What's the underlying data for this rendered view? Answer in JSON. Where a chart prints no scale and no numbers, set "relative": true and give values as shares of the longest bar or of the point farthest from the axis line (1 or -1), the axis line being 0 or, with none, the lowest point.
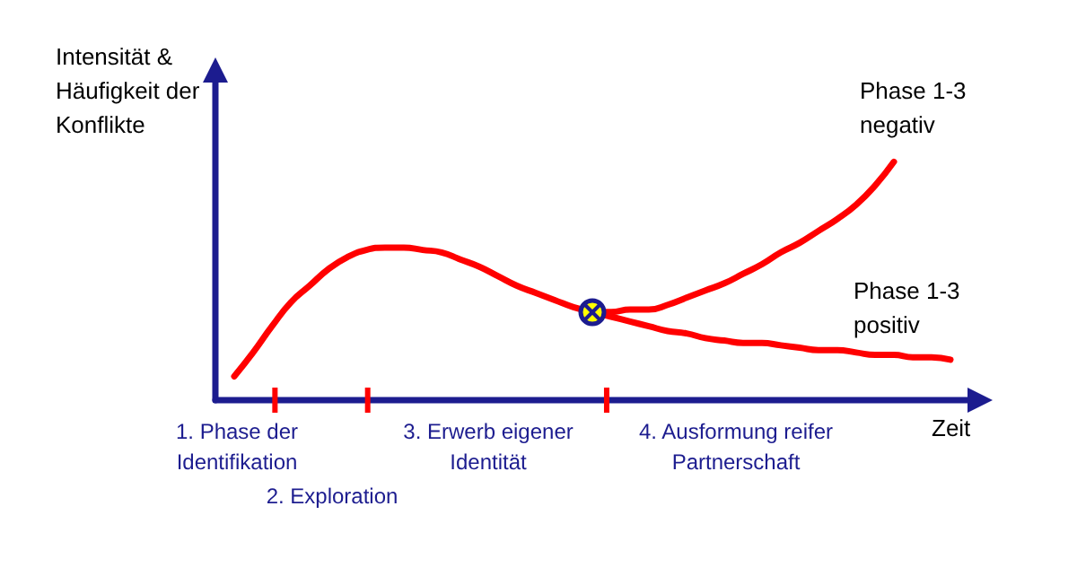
{
  "chart_data": {
    "type": "line",
    "relative": true,
    "ylabel": "Intensität &\nHäufigkeit der\nKonflikte",
    "xlabel": "Zeit",
    "categories": [
      null,
      null,
      null,
      null,
      null,
      null,
      null,
      null,
      null,
      null,
      null,
      null,
      null,
      null,
      null,
      null,
      null,
      null,
      null,
      null,
      null,
      null,
      null,
      null,
      null,
      null,
      null,
      null,
      null,
      null,
      null,
      null,
      null,
      null,
      null,
      null,
      null,
      null,
      null,
      null,
      null
    ],
    "annotations": [
      "1. Phase der\nIdentifikation",
      "2. Exploration",
      "3. Erwerb eigener\nIdentität",
      "4. Ausformung reifer\nPartnerschaft"
    ],
    "grid": false,
    "legend": false,
    "marker": "none",
    "line_style": "solid",
    "series": [
      {
        "color": "#ff0000",
        "values": [
          null,
          0.1,
          0.2,
          0.31,
          0.41,
          0.48,
          0.55,
          0.6,
          0.63,
          0.64,
          0.64,
          0.63,
          0.62,
          0.59,
          0.56,
          0.52,
          0.48,
          0.45,
          0.42,
          0.39,
          0.37,
          null,
          null,
          null,
          null,
          null,
          null,
          null,
          null,
          null,
          null,
          null,
          null,
          null,
          null,
          null,
          null,
          null,
          null,
          null,
          null
        ]
      },
      {
        "name": "Phase 1-3\nnegativ",
        "color": "#ff0000",
        "values": [
          null,
          null,
          null,
          null,
          null,
          null,
          null,
          null,
          null,
          null,
          null,
          null,
          null,
          null,
          null,
          null,
          null,
          null,
          null,
          null,
          0.37,
          0.37,
          0.38,
          0.38,
          0.4,
          0.43,
          0.46,
          0.49,
          0.53,
          0.57,
          0.62,
          0.66,
          0.71,
          0.76,
          0.82,
          0.9,
          1,
          null,
          null,
          null,
          null
        ]
      },
      {
        "name": "Phase 1-3\npositiv",
        "color": "#ff0000",
        "values": [
          null,
          null,
          null,
          null,
          null,
          null,
          null,
          null,
          null,
          null,
          null,
          null,
          null,
          null,
          null,
          null,
          null,
          null,
          null,
          null,
          0.37,
          0.35,
          0.33,
          0.31,
          0.29,
          0.28,
          0.26,
          0.25,
          0.24,
          0.24,
          0.23,
          0.22,
          0.21,
          0.21,
          0.2,
          0.19,
          0.19,
          0.18,
          0.18,
          0.17,
          null
        ]
      }
    ]
  }
}
